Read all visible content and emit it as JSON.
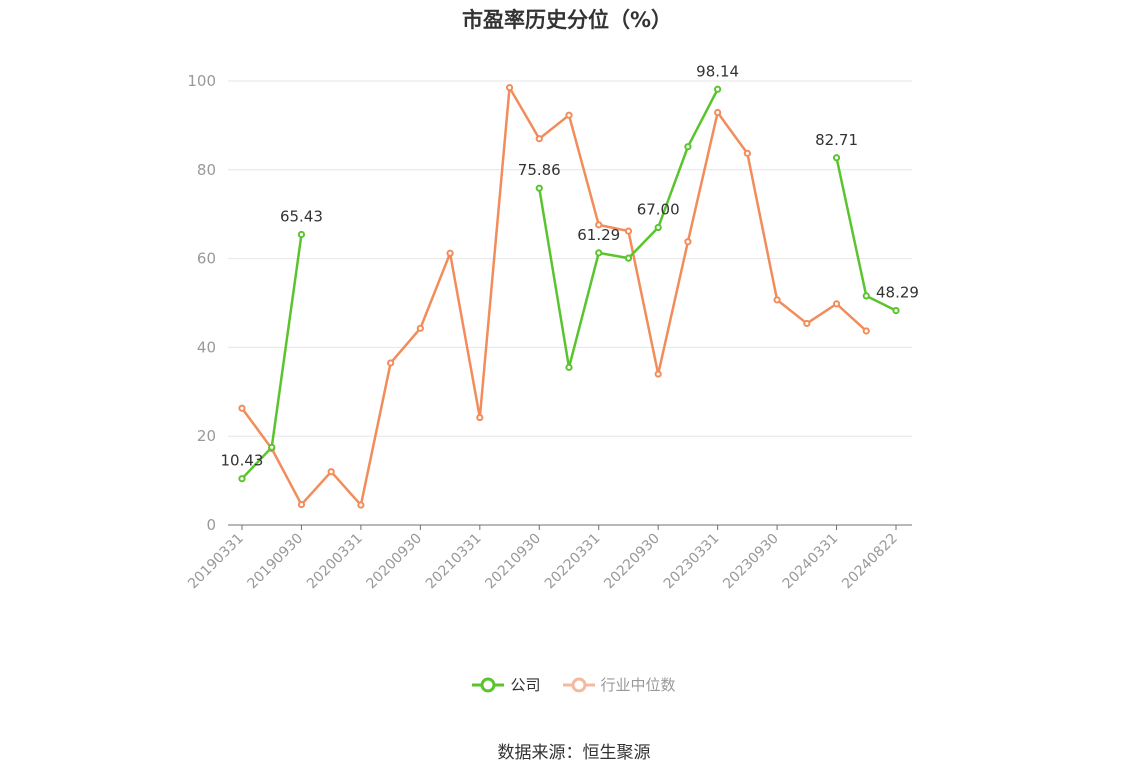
{
  "title": "市盈率历史分位（%）",
  "source": "数据来源：恒生聚源",
  "chart_data": {
    "type": "line",
    "title": "市盈率历史分位（%）",
    "ylim": [
      0,
      100
    ],
    "yticks": [
      0,
      20,
      40,
      60,
      80,
      100
    ],
    "grid": true,
    "legend_position": "bottom",
    "x": [
      "20190331",
      "20190630",
      "20190930",
      "20191231",
      "20200331",
      "20200630",
      "20200930",
      "20201231",
      "20210331",
      "20210630",
      "20210930",
      "20211231",
      "20220331",
      "20220630",
      "20220930",
      "20221231",
      "20230331",
      "20230630",
      "20230930",
      "20231231",
      "20240331",
      "20240630",
      "20240822"
    ],
    "xticks_shown": [
      "20190331",
      "20190930",
      "20200331",
      "20200930",
      "20210331",
      "20210930",
      "20220331",
      "20220930",
      "20230331",
      "20230930",
      "20240331",
      "20240822"
    ],
    "series": [
      {
        "name": "公司",
        "color": "#5ac42e",
        "values": [
          10.43,
          17.5,
          65.43,
          null,
          null,
          null,
          null,
          null,
          null,
          null,
          75.86,
          35.5,
          61.29,
          60.1,
          67.0,
          85.2,
          98.14,
          null,
          null,
          null,
          82.71,
          51.6,
          48.29
        ],
        "labels": {
          "0": "10.43",
          "2": "65.43",
          "10": "75.86",
          "12": "61.29",
          "14": "67.00",
          "16": "98.14",
          "20": "82.71",
          "22": "48.29"
        }
      },
      {
        "name": "行业中位数",
        "color": "#f28c5a",
        "values": [
          26.3,
          17.2,
          4.6,
          12.0,
          4.5,
          36.5,
          44.3,
          61.2,
          24.2,
          98.5,
          87.0,
          92.3,
          67.6,
          66.2,
          34.0,
          63.8,
          92.9,
          83.7,
          50.7,
          45.4,
          49.8,
          43.7,
          null
        ]
      }
    ]
  },
  "legend": {
    "company_label": "公司",
    "industry_label": "行业中位数",
    "company_color": "#5ac42e",
    "industry_color": "#f5b9a0"
  }
}
